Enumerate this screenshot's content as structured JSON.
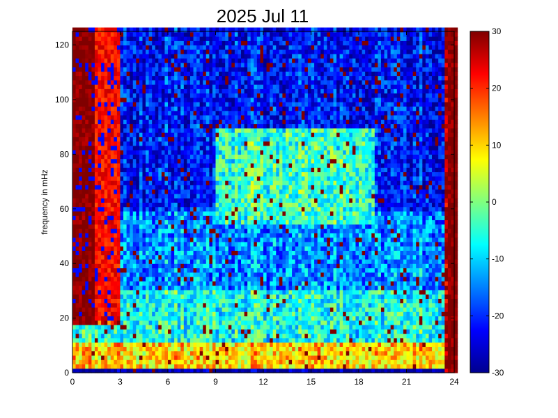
{
  "chart_data": {
    "type": "heatmap",
    "title": "2025 Jul 11",
    "xlabel": "",
    "ylabel": "frequency in mHz",
    "xlim": [
      0,
      24
    ],
    "ylim": [
      0,
      125
    ],
    "x_ticks": [
      "0",
      "3",
      "6",
      "9",
      "12",
      "15",
      "18",
      "21",
      "24"
    ],
    "y_ticks": [
      "0",
      "20",
      "40",
      "60",
      "80",
      "100",
      "120"
    ],
    "colorbar": {
      "colormap": "jet",
      "clim": [
        -30,
        30
      ],
      "ticks": [
        "-30",
        "-20",
        "-10",
        "0",
        "10",
        "20",
        "30"
      ]
    },
    "grid": false,
    "description_of_values": {
      "x_units": "hours",
      "y_units": "mHz",
      "cell_size_x_hours": 0.2,
      "cell_size_y_mhz": 1.6,
      "regions": [
        {
          "x": [
            0,
            1.5
          ],
          "y": [
            20,
            125
          ],
          "level": 30
        },
        {
          "x": [
            1.5,
            3
          ],
          "y": [
            20,
            125
          ],
          "level": 20
        },
        {
          "x": [
            23.4,
            24
          ],
          "y": [
            0,
            125
          ],
          "level": 30
        },
        {
          "x": [
            3,
            23
          ],
          "y": [
            0,
            2
          ],
          "level": -30
        },
        {
          "x": [
            3,
            23
          ],
          "y": [
            2,
            12
          ],
          "level": 10
        },
        {
          "x": [
            3,
            23
          ],
          "y": [
            12,
            30
          ],
          "level": -5
        },
        {
          "x": [
            9,
            19
          ],
          "y": [
            55,
            90
          ],
          "level": -2
        },
        {
          "x": [
            3,
            23
          ],
          "y": [
            30,
            125
          ],
          "level": -22
        }
      ]
    }
  },
  "colors": {
    "background": "#ffffff",
    "axis": "#000000"
  }
}
